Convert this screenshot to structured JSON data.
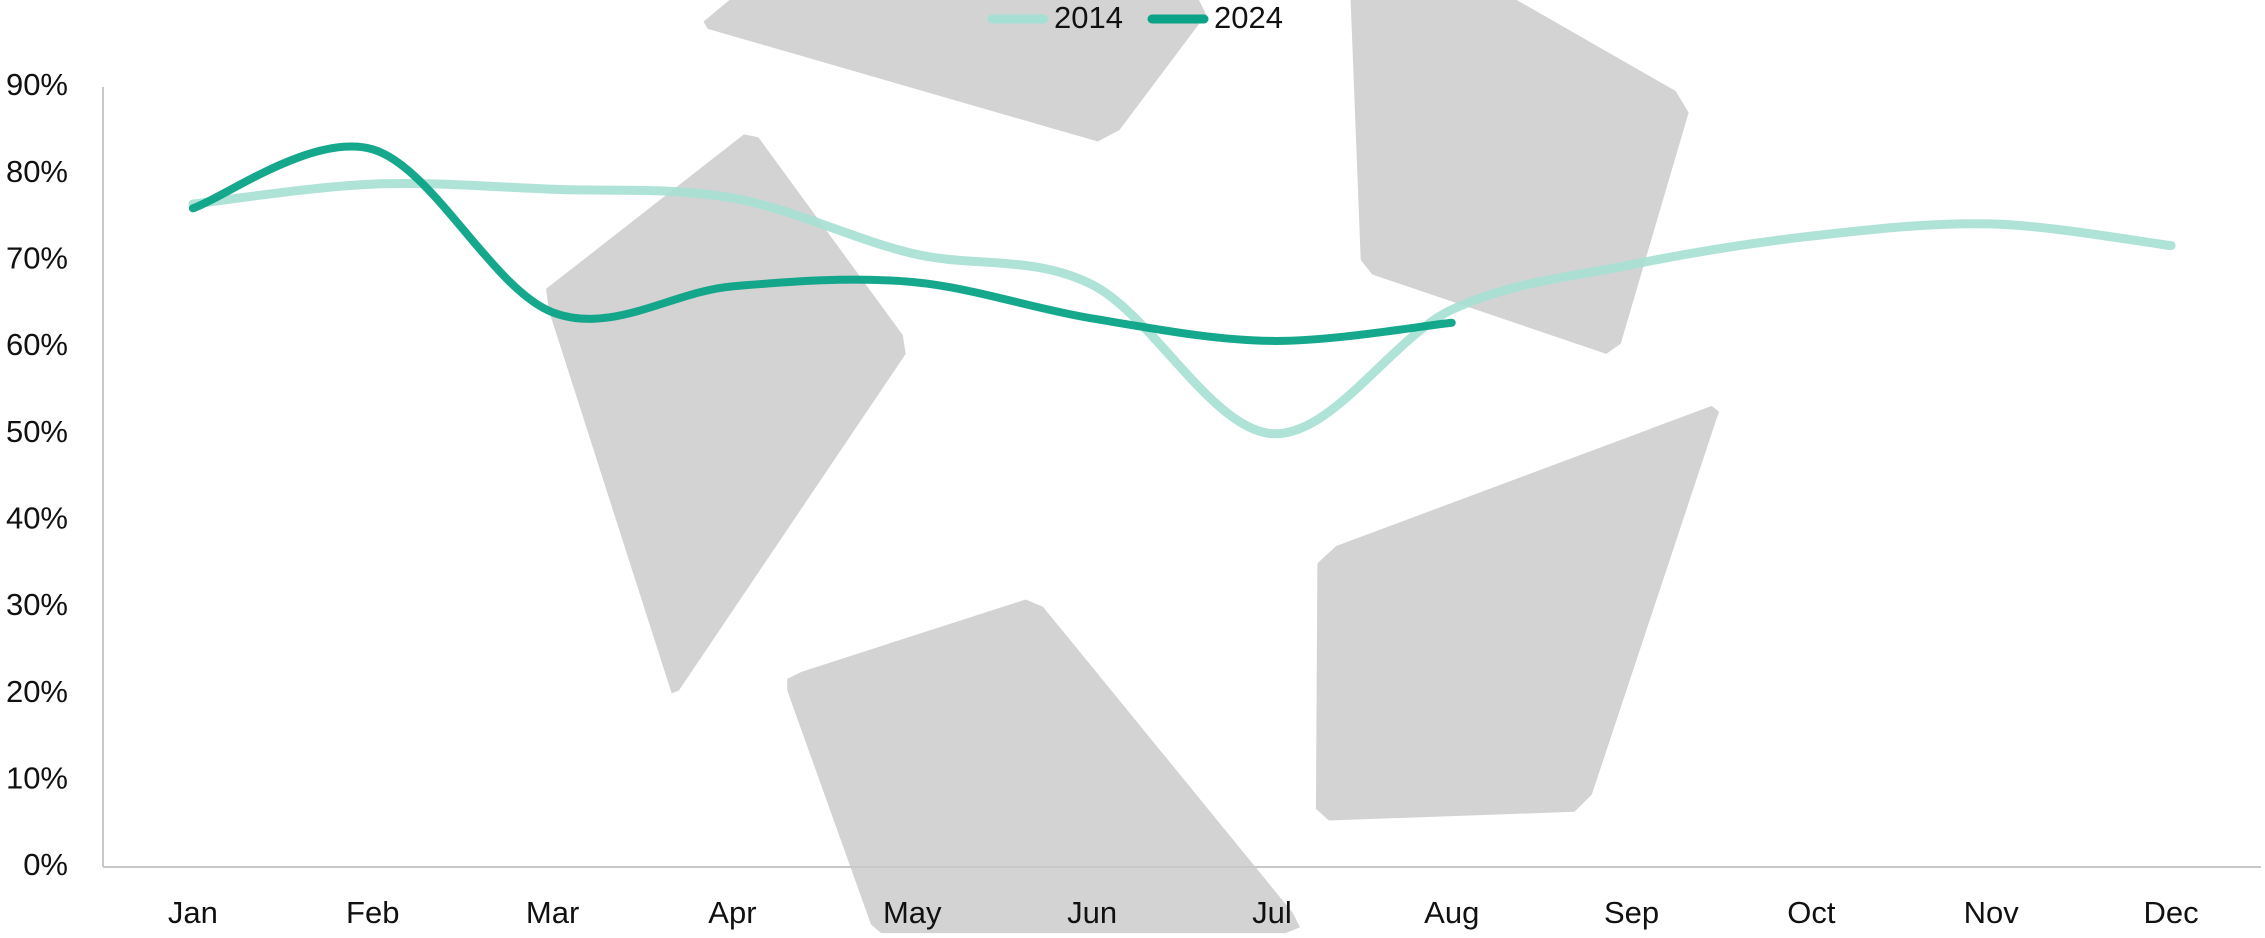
{
  "chart_data": {
    "type": "line",
    "categories": [
      "Jan",
      "Feb",
      "Mar",
      "Apr",
      "May",
      "Jun",
      "Jul",
      "Aug",
      "Sep",
      "Oct",
      "Nov",
      "Dec"
    ],
    "series": [
      {
        "name": "2014",
        "color": "#a6e0d4",
        "values": [
          76.5,
          78.8,
          78.2,
          77.2,
          70.8,
          67.2,
          50,
          64.3,
          69.5,
          72.8,
          74.2,
          71.7
        ]
      },
      {
        "name": "2024",
        "color": "#0aa387",
        "values": [
          76,
          82.8,
          64,
          67,
          67.5,
          63.3,
          60.7,
          62.8,
          null,
          null,
          null,
          null
        ]
      }
    ],
    "ylim": [
      0,
      90
    ],
    "yticks": [
      {
        "value": 0,
        "label": "0%"
      },
      {
        "value": 10,
        "label": "10%"
      },
      {
        "value": 20,
        "label": "20%"
      },
      {
        "value": 30,
        "label": "30%"
      },
      {
        "value": 40,
        "label": "40%"
      },
      {
        "value": 50,
        "label": "50%"
      },
      {
        "value": 60,
        "label": "60%"
      },
      {
        "value": 70,
        "label": "70%"
      },
      {
        "value": 80,
        "label": "80%"
      },
      {
        "value": 90,
        "label": "90%"
      }
    ],
    "smooth": true,
    "legend": "top"
  }
}
